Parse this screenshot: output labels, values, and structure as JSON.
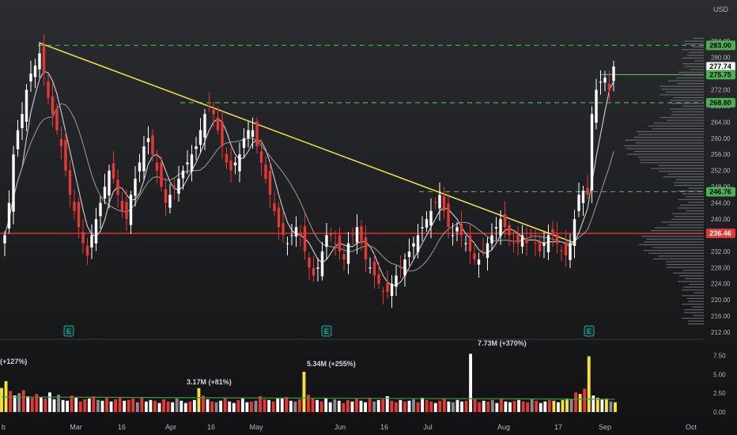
{
  "currency": "USD",
  "colors": {
    "up": "#ffffff",
    "down": "#e53935",
    "volume_highlight": "#f5e33b",
    "level_line": "#4caf50",
    "trend_line": "#e6d94a",
    "support_line": "#e53935",
    "ma_fast": "#9e9e9e",
    "ma_slow": "#d6d6d6",
    "volume_avg": "#2e9e3a",
    "earnings": "#26a69a"
  },
  "price_axis": {
    "ticks": [
      "284.00",
      "280.00",
      "276.00",
      "272.00",
      "268.00",
      "264.00",
      "260.00",
      "256.00",
      "252.00",
      "248.00",
      "244.00",
      "240.00",
      "236.00",
      "232.00",
      "228.00",
      "224.00",
      "220.00",
      "216.00",
      "212.00"
    ]
  },
  "price_tags": [
    {
      "value": "283.00",
      "kind": "level"
    },
    {
      "value": "277.74",
      "kind": "last"
    },
    {
      "value": "275.75",
      "kind": "level"
    },
    {
      "value": "268.80",
      "kind": "level"
    },
    {
      "value": "246.76",
      "kind": "level"
    },
    {
      "value": "236.46",
      "kind": "support"
    }
  ],
  "volume_axis": {
    "ticks": [
      "7.50",
      "5.00",
      "2.50",
      "0.00"
    ]
  },
  "time_axis": {
    "ticks": [
      "b",
      "Mar",
      "16",
      "Apr",
      "16",
      "May",
      "Jun",
      "16",
      "Jul",
      "Aug",
      "17",
      "Sep",
      "Oct"
    ]
  },
  "volume_annotations": [
    {
      "text": "(+127%)"
    },
    {
      "text": "3.17M (+81%)"
    },
    {
      "text": "5.34M (+255%)"
    },
    {
      "text": "7.73M (+370%)"
    }
  ],
  "earnings_marker": {
    "label": "E"
  },
  "chart_data": {
    "type": "candlestick",
    "title": "",
    "ylim": [
      212,
      286
    ],
    "volume_ylim": [
      0,
      8.5
    ],
    "horizontal_levels": [
      283.0,
      275.75,
      268.8,
      246.76
    ],
    "support_level": 236.46,
    "last_price": 277.74,
    "trendline": {
      "start_price": 283.6,
      "end_price": 234.0
    },
    "closes": [
      236,
      244,
      256,
      262,
      266,
      272,
      276,
      278,
      281,
      276,
      270,
      266,
      262,
      258,
      252,
      246,
      242,
      238,
      234,
      231,
      236,
      240,
      244,
      248,
      252,
      250,
      246,
      242,
      240,
      246,
      250,
      254,
      258,
      260,
      256,
      252,
      248,
      244,
      246,
      248,
      250,
      252,
      254,
      256,
      258,
      262,
      266,
      268,
      266,
      262,
      258,
      254,
      252,
      254,
      256,
      260,
      262,
      262,
      258,
      254,
      250,
      246,
      242,
      238,
      236,
      234,
      236,
      238,
      236,
      232,
      228,
      226,
      228,
      232,
      236,
      236,
      234,
      232,
      230,
      234,
      236,
      238,
      234,
      230,
      228,
      226,
      224,
      222,
      222,
      224,
      226,
      228,
      230,
      232,
      234,
      236,
      238,
      240,
      242,
      244,
      246,
      242,
      238,
      236,
      238,
      236,
      234,
      232,
      230,
      230,
      232,
      234,
      236,
      238,
      240,
      238,
      236,
      234,
      234,
      236,
      234,
      236,
      234,
      232,
      234,
      236,
      236,
      234,
      232,
      231,
      234,
      240,
      246,
      247,
      246,
      266,
      272,
      274,
      275,
      272,
      277.74
    ],
    "volumes": [
      3.2,
      4.1,
      2.8,
      2.2,
      2.5,
      2.9,
      2.1,
      1.9,
      2.4,
      2.0,
      1.8,
      2.6,
      1.7,
      2.3,
      1.6,
      1.5,
      2.2,
      1.9,
      1.4,
      1.7,
      1.8,
      2.1,
      1.6,
      1.5,
      1.9,
      1.4,
      1.7,
      2.0,
      1.5,
      1.6,
      1.8,
      1.3,
      1.9,
      1.4,
      1.6,
      1.5,
      1.2,
      1.7,
      1.4,
      1.3,
      1.8,
      1.5,
      1.2,
      1.4,
      1.6,
      3.17,
      2.2,
      1.7,
      1.4,
      1.3,
      1.5,
      1.9,
      1.4,
      1.2,
      1.6,
      1.8,
      1.3,
      1.4,
      1.5,
      2.1,
      1.7,
      1.6,
      1.4,
      1.8,
      1.9,
      2.0,
      1.5,
      1.4,
      1.7,
      5.34,
      2.3,
      1.8,
      1.6,
      1.4,
      1.9,
      1.3,
      1.7,
      1.5,
      1.2,
      1.6,
      1.4,
      1.8,
      1.5,
      1.3,
      1.9,
      1.4,
      1.6,
      1.7,
      2.1,
      1.5,
      1.3,
      1.6,
      1.4,
      1.5,
      1.7,
      1.3,
      1.9,
      1.6,
      1.4,
      1.2,
      1.5,
      1.8,
      1.4,
      1.3,
      1.6,
      1.4,
      1.5,
      7.73,
      1.7,
      1.3,
      1.5,
      1.4,
      1.6,
      1.2,
      1.8,
      1.4,
      1.3,
      1.5,
      1.6,
      1.4,
      1.3,
      1.7,
      1.5,
      1.2,
      1.4,
      1.6,
      1.5,
      1.3,
      1.6,
      1.8,
      1.7,
      2.6,
      2.4,
      3.1,
      7.4,
      2.2,
      1.9,
      1.7,
      1.8,
      1.4,
      1.3
    ],
    "volume_average": 2.0,
    "volume_profile": "horizontal histogram of traded volume by price, heaviest near 232-236 and 252-266"
  }
}
